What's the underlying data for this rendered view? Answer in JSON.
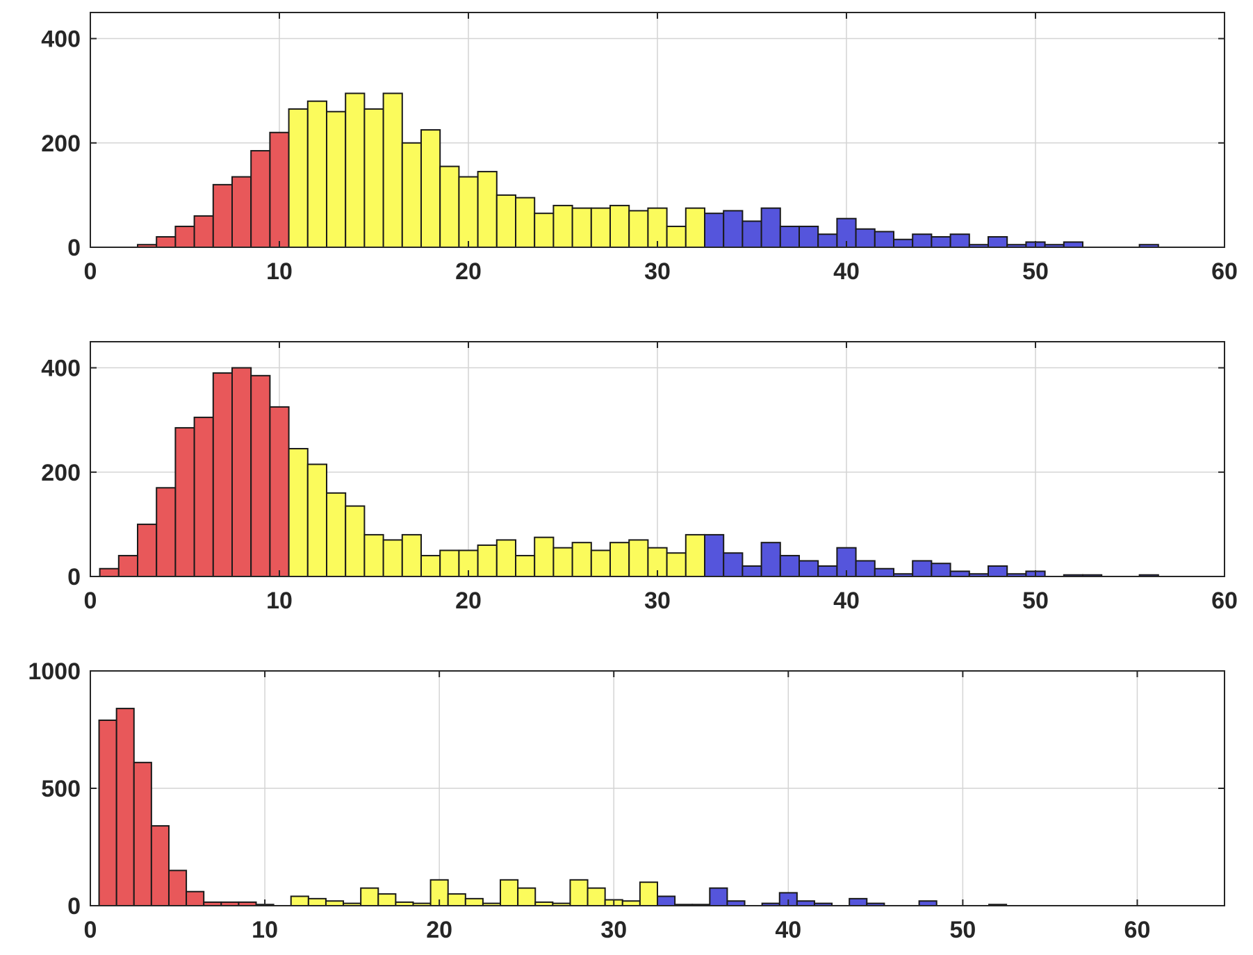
{
  "colors": {
    "red": "#e8585a",
    "yellow": "#fbfb5c",
    "blue": "#5555dc",
    "edge": "#1a1a1a",
    "grid": "#d4d4d4",
    "axis": "#262626"
  },
  "chart_data": [
    {
      "type": "bar",
      "bin_width": 1,
      "xlim": [
        0,
        60
      ],
      "ylim": [
        0,
        450
      ],
      "xticks": [
        0,
        10,
        20,
        30,
        40,
        50,
        60
      ],
      "yticks": [
        0,
        200,
        400
      ],
      "grid": true,
      "groups": [
        {
          "color": "red",
          "x_start": 0.5,
          "x_end": 10.5
        },
        {
          "color": "yellow",
          "x_start": 10.5,
          "x_end": 32.5
        },
        {
          "color": "blue",
          "x_start": 32.5,
          "x_end": 60
        }
      ],
      "bins": [
        {
          "x": 3,
          "value": 5
        },
        {
          "x": 4,
          "value": 20
        },
        {
          "x": 5,
          "value": 40
        },
        {
          "x": 6,
          "value": 60
        },
        {
          "x": 7,
          "value": 120
        },
        {
          "x": 8,
          "value": 135
        },
        {
          "x": 9,
          "value": 185
        },
        {
          "x": 10,
          "value": 220
        },
        {
          "x": 11,
          "value": 265
        },
        {
          "x": 12,
          "value": 280
        },
        {
          "x": 13,
          "value": 260
        },
        {
          "x": 14,
          "value": 295
        },
        {
          "x": 15,
          "value": 265
        },
        {
          "x": 16,
          "value": 295
        },
        {
          "x": 17,
          "value": 200
        },
        {
          "x": 18,
          "value": 225
        },
        {
          "x": 19,
          "value": 155
        },
        {
          "x": 20,
          "value": 135
        },
        {
          "x": 21,
          "value": 145
        },
        {
          "x": 22,
          "value": 100
        },
        {
          "x": 23,
          "value": 95
        },
        {
          "x": 24,
          "value": 65
        },
        {
          "x": 25,
          "value": 80
        },
        {
          "x": 26,
          "value": 75
        },
        {
          "x": 27,
          "value": 75
        },
        {
          "x": 28,
          "value": 80
        },
        {
          "x": 29,
          "value": 70
        },
        {
          "x": 30,
          "value": 75
        },
        {
          "x": 31,
          "value": 40
        },
        {
          "x": 32,
          "value": 75
        },
        {
          "x": 33,
          "value": 65
        },
        {
          "x": 34,
          "value": 70
        },
        {
          "x": 35,
          "value": 50
        },
        {
          "x": 36,
          "value": 75
        },
        {
          "x": 37,
          "value": 40
        },
        {
          "x": 38,
          "value": 40
        },
        {
          "x": 39,
          "value": 25
        },
        {
          "x": 40,
          "value": 55
        },
        {
          "x": 41,
          "value": 35
        },
        {
          "x": 42,
          "value": 30
        },
        {
          "x": 43,
          "value": 15
        },
        {
          "x": 44,
          "value": 25
        },
        {
          "x": 45,
          "value": 20
        },
        {
          "x": 46,
          "value": 25
        },
        {
          "x": 47,
          "value": 5
        },
        {
          "x": 48,
          "value": 20
        },
        {
          "x": 49,
          "value": 5
        },
        {
          "x": 50,
          "value": 10
        },
        {
          "x": 51,
          "value": 5
        },
        {
          "x": 52,
          "value": 10
        },
        {
          "x": 56,
          "value": 5
        }
      ]
    },
    {
      "type": "bar",
      "bin_width": 1,
      "xlim": [
        0,
        60
      ],
      "ylim": [
        0,
        450
      ],
      "xticks": [
        0,
        10,
        20,
        30,
        40,
        50,
        60
      ],
      "yticks": [
        0,
        200,
        400
      ],
      "grid": true,
      "groups": [
        {
          "color": "red",
          "x_start": 0.5,
          "x_end": 10.5
        },
        {
          "color": "yellow",
          "x_start": 10.5,
          "x_end": 32.5
        },
        {
          "color": "blue",
          "x_start": 32.5,
          "x_end": 60
        }
      ],
      "bins": [
        {
          "x": 1,
          "value": 15
        },
        {
          "x": 2,
          "value": 40
        },
        {
          "x": 3,
          "value": 100
        },
        {
          "x": 4,
          "value": 170
        },
        {
          "x": 5,
          "value": 285
        },
        {
          "x": 6,
          "value": 305
        },
        {
          "x": 7,
          "value": 390
        },
        {
          "x": 8,
          "value": 400
        },
        {
          "x": 9,
          "value": 385
        },
        {
          "x": 10,
          "value": 325
        },
        {
          "x": 11,
          "value": 245
        },
        {
          "x": 12,
          "value": 215
        },
        {
          "x": 13,
          "value": 160
        },
        {
          "x": 14,
          "value": 135
        },
        {
          "x": 15,
          "value": 80
        },
        {
          "x": 16,
          "value": 70
        },
        {
          "x": 17,
          "value": 80
        },
        {
          "x": 18,
          "value": 40
        },
        {
          "x": 19,
          "value": 50
        },
        {
          "x": 20,
          "value": 50
        },
        {
          "x": 21,
          "value": 60
        },
        {
          "x": 22,
          "value": 70
        },
        {
          "x": 23,
          "value": 40
        },
        {
          "x": 24,
          "value": 75
        },
        {
          "x": 25,
          "value": 55
        },
        {
          "x": 26,
          "value": 65
        },
        {
          "x": 27,
          "value": 50
        },
        {
          "x": 28,
          "value": 65
        },
        {
          "x": 29,
          "value": 70
        },
        {
          "x": 30,
          "value": 55
        },
        {
          "x": 31,
          "value": 45
        },
        {
          "x": 32,
          "value": 80
        },
        {
          "x": 33,
          "value": 80
        },
        {
          "x": 34,
          "value": 45
        },
        {
          "x": 35,
          "value": 20
        },
        {
          "x": 36,
          "value": 65
        },
        {
          "x": 37,
          "value": 40
        },
        {
          "x": 38,
          "value": 30
        },
        {
          "x": 39,
          "value": 20
        },
        {
          "x": 40,
          "value": 55
        },
        {
          "x": 41,
          "value": 30
        },
        {
          "x": 42,
          "value": 15
        },
        {
          "x": 43,
          "value": 5
        },
        {
          "x": 44,
          "value": 30
        },
        {
          "x": 45,
          "value": 25
        },
        {
          "x": 46,
          "value": 10
        },
        {
          "x": 47,
          "value": 5
        },
        {
          "x": 48,
          "value": 20
        },
        {
          "x": 49,
          "value": 5
        },
        {
          "x": 50,
          "value": 10
        },
        {
          "x": 52,
          "value": 3
        },
        {
          "x": 53,
          "value": 3
        },
        {
          "x": 56,
          "value": 3
        }
      ]
    },
    {
      "type": "bar",
      "bin_width": 1,
      "xlim": [
        0,
        65
      ],
      "ylim": [
        0,
        1000
      ],
      "xticks": [
        0,
        10,
        20,
        30,
        40,
        50,
        60
      ],
      "yticks": [
        0,
        500,
        1000
      ],
      "grid": true,
      "groups": [
        {
          "color": "red",
          "x_start": 0.5,
          "x_end": 10.5
        },
        {
          "color": "yellow",
          "x_start": 10.5,
          "x_end": 32.5
        },
        {
          "color": "blue",
          "x_start": 32.5,
          "x_end": 65
        }
      ],
      "bins": [
        {
          "x": 1,
          "value": 790
        },
        {
          "x": 2,
          "value": 840
        },
        {
          "x": 3,
          "value": 610
        },
        {
          "x": 4,
          "value": 340
        },
        {
          "x": 5,
          "value": 150
        },
        {
          "x": 6,
          "value": 60
        },
        {
          "x": 7,
          "value": 15
        },
        {
          "x": 8,
          "value": 15
        },
        {
          "x": 9,
          "value": 15
        },
        {
          "x": 10,
          "value": 5
        },
        {
          "x": 12,
          "value": 40
        },
        {
          "x": 13,
          "value": 30
        },
        {
          "x": 14,
          "value": 20
        },
        {
          "x": 15,
          "value": 10
        },
        {
          "x": 16,
          "value": 75
        },
        {
          "x": 17,
          "value": 50
        },
        {
          "x": 18,
          "value": 15
        },
        {
          "x": 19,
          "value": 10
        },
        {
          "x": 20,
          "value": 110
        },
        {
          "x": 21,
          "value": 50
        },
        {
          "x": 22,
          "value": 30
        },
        {
          "x": 23,
          "value": 10
        },
        {
          "x": 24,
          "value": 110
        },
        {
          "x": 25,
          "value": 75
        },
        {
          "x": 26,
          "value": 15
        },
        {
          "x": 27,
          "value": 10
        },
        {
          "x": 28,
          "value": 110
        },
        {
          "x": 29,
          "value": 75
        },
        {
          "x": 30,
          "value": 25
        },
        {
          "x": 31,
          "value": 20
        },
        {
          "x": 32,
          "value": 100
        },
        {
          "x": 33,
          "value": 40
        },
        {
          "x": 34,
          "value": 5
        },
        {
          "x": 35,
          "value": 5
        },
        {
          "x": 36,
          "value": 75
        },
        {
          "x": 37,
          "value": 20
        },
        {
          "x": 39,
          "value": 10
        },
        {
          "x": 40,
          "value": 55
        },
        {
          "x": 41,
          "value": 20
        },
        {
          "x": 42,
          "value": 10
        },
        {
          "x": 44,
          "value": 30
        },
        {
          "x": 45,
          "value": 10
        },
        {
          "x": 48,
          "value": 20
        },
        {
          "x": 52,
          "value": 5
        }
      ]
    }
  ]
}
